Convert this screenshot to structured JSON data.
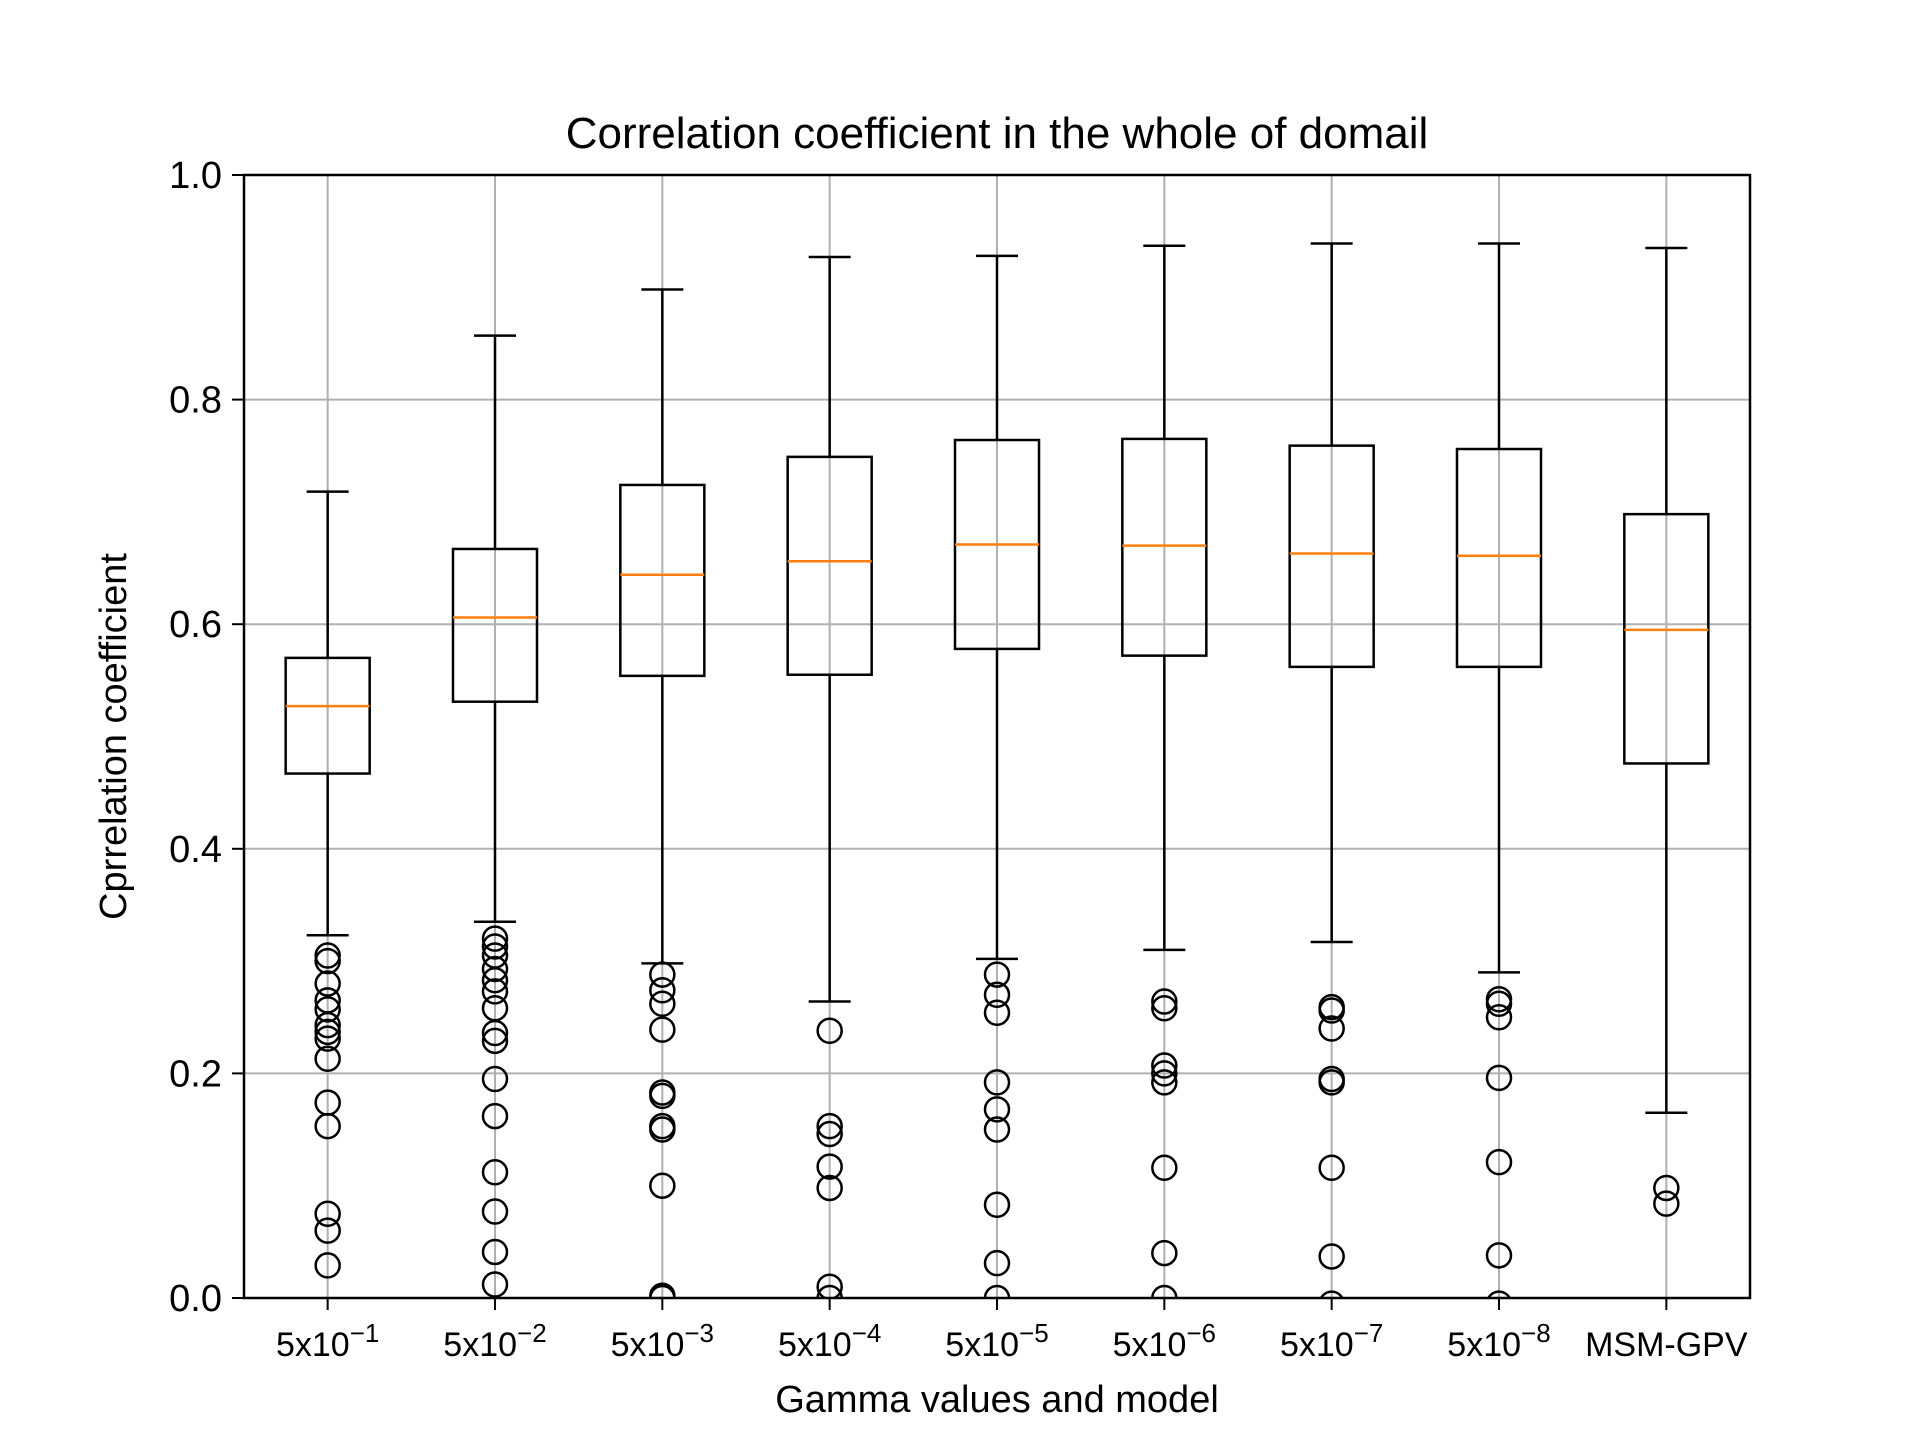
{
  "chart_data": {
    "type": "box",
    "title": "Correlation coefficient in the whole of domail",
    "xlabel": "Gamma values and model",
    "ylabel": "Cprrelation coefficient",
    "ylim": [
      0.0,
      1.0
    ],
    "yticks": [
      "0.0",
      "0.2",
      "0.4",
      "0.6",
      "0.8",
      "1.0"
    ],
    "grid": true,
    "median_color": "#ff7f0e",
    "box_color": "#000000",
    "categories": [
      {
        "base": "5x10",
        "exp": "−1"
      },
      {
        "base": "5x10",
        "exp": "−2"
      },
      {
        "base": "5x10",
        "exp": "−3"
      },
      {
        "base": "5x10",
        "exp": "−4"
      },
      {
        "base": "5x10",
        "exp": "−5"
      },
      {
        "base": "5x10",
        "exp": "−6"
      },
      {
        "base": "5x10",
        "exp": "−7"
      },
      {
        "base": "5x10",
        "exp": "−8"
      },
      {
        "base": "MSM-GPV",
        "exp": ""
      }
    ],
    "boxes": [
      {
        "whislo": 0.323,
        "q1": 0.467,
        "med": 0.527,
        "q3": 0.57,
        "whishi": 0.718,
        "fliers": [
          0.305,
          0.3,
          0.28,
          0.265,
          0.257,
          0.243,
          0.237,
          0.231,
          0.213,
          0.174,
          0.153,
          0.075,
          0.06,
          0.029
        ]
      },
      {
        "whislo": 0.335,
        "q1": 0.531,
        "med": 0.606,
        "q3": 0.667,
        "whishi": 0.857,
        "fliers": [
          0.32,
          0.313,
          0.305,
          0.293,
          0.283,
          0.273,
          0.258,
          0.236,
          0.229,
          0.195,
          0.162,
          0.112,
          0.077,
          0.041,
          0.012
        ]
      },
      {
        "whislo": 0.298,
        "q1": 0.554,
        "med": 0.644,
        "q3": 0.724,
        "whishi": 0.898,
        "fliers": [
          0.288,
          0.274,
          0.262,
          0.239,
          0.183,
          0.18,
          0.153,
          0.15,
          0.1,
          0.002,
          0.0
        ]
      },
      {
        "whislo": 0.264,
        "q1": 0.555,
        "med": 0.656,
        "q3": 0.749,
        "whishi": 0.927,
        "fliers": [
          0.238,
          0.153,
          0.146,
          0.117,
          0.098,
          0.01,
          0.0
        ]
      },
      {
        "whislo": 0.302,
        "q1": 0.578,
        "med": 0.671,
        "q3": 0.764,
        "whishi": 0.928,
        "fliers": [
          0.288,
          0.27,
          0.254,
          0.192,
          0.168,
          0.15,
          0.083,
          0.031,
          0.0
        ]
      },
      {
        "whislo": 0.31,
        "q1": 0.572,
        "med": 0.67,
        "q3": 0.765,
        "whishi": 0.937,
        "fliers": [
          0.264,
          0.258,
          0.207,
          0.2,
          0.192,
          0.116,
          0.04,
          0.0
        ]
      },
      {
        "whislo": 0.317,
        "q1": 0.562,
        "med": 0.663,
        "q3": 0.759,
        "whishi": 0.939,
        "fliers": [
          0.259,
          0.256,
          0.24,
          0.195,
          0.192,
          0.116,
          0.037,
          -0.005
        ]
      },
      {
        "whislo": 0.29,
        "q1": 0.562,
        "med": 0.661,
        "q3": 0.756,
        "whishi": 0.939,
        "fliers": [
          0.266,
          0.262,
          0.25,
          0.196,
          0.121,
          0.038,
          -0.005
        ]
      },
      {
        "whislo": 0.165,
        "q1": 0.476,
        "med": 0.595,
        "q3": 0.698,
        "whishi": 0.935,
        "fliers": [
          0.098,
          0.084
        ]
      }
    ]
  }
}
